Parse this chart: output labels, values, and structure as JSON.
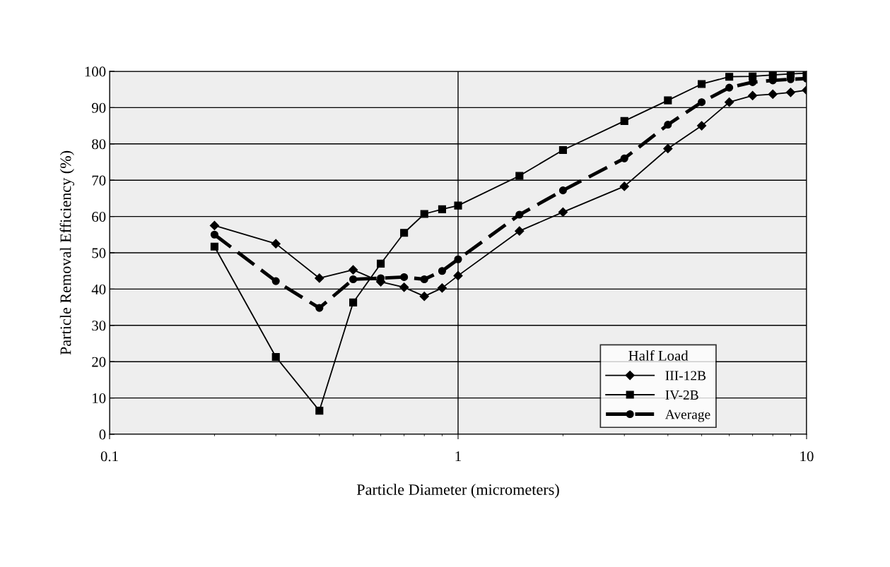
{
  "chart_data": {
    "type": "line",
    "xlabel": "Particle Diameter (micrometers)",
    "ylabel": "Particle Removal Efficiency (%)",
    "log": "x",
    "x": [
      0.2,
      0.3,
      0.4,
      0.5,
      0.6,
      0.7,
      0.8,
      0.9,
      1,
      1.5,
      2,
      3,
      4,
      5,
      6,
      7,
      8,
      9,
      10
    ],
    "series": [
      {
        "name": "III-12B",
        "color": "#000000",
        "marker": "diamond",
        "line_style": "solid",
        "values": [
          57.5,
          52.5,
          43,
          45.3,
          42,
          40.5,
          38,
          40.3,
          43.7,
          56,
          61.2,
          68.3,
          78.7,
          85,
          91.5,
          93.3,
          93.7,
          94.2,
          94.8
        ]
      },
      {
        "name": "IV-2B",
        "color": "#000000",
        "marker": "square",
        "line_style": "solid",
        "values": [
          51.7,
          21.3,
          6.5,
          36.3,
          47,
          55.5,
          60.7,
          62,
          63,
          71.2,
          78.3,
          86.3,
          92,
          96.5,
          98.5,
          98.6,
          99,
          99.3,
          99.5
        ]
      },
      {
        "name": "Average",
        "color": "#000000",
        "marker": "circle",
        "line_style": "dashed",
        "values": [
          55,
          42.2,
          34.8,
          42.7,
          43,
          43.3,
          42.7,
          45,
          48.2,
          60.5,
          67.2,
          76,
          85.3,
          91.5,
          95.5,
          97,
          97.5,
          97.8,
          98
        ]
      }
    ],
    "xlim": [
      0.1,
      10
    ],
    "xticks": [
      0.1,
      1,
      10
    ],
    "ylim": [
      0,
      100
    ],
    "yticks": [
      0,
      10,
      20,
      30,
      40,
      50,
      60,
      70,
      80,
      90,
      100
    ],
    "grid": true,
    "legend": "bottom right",
    "legend_title": "Half Load"
  }
}
